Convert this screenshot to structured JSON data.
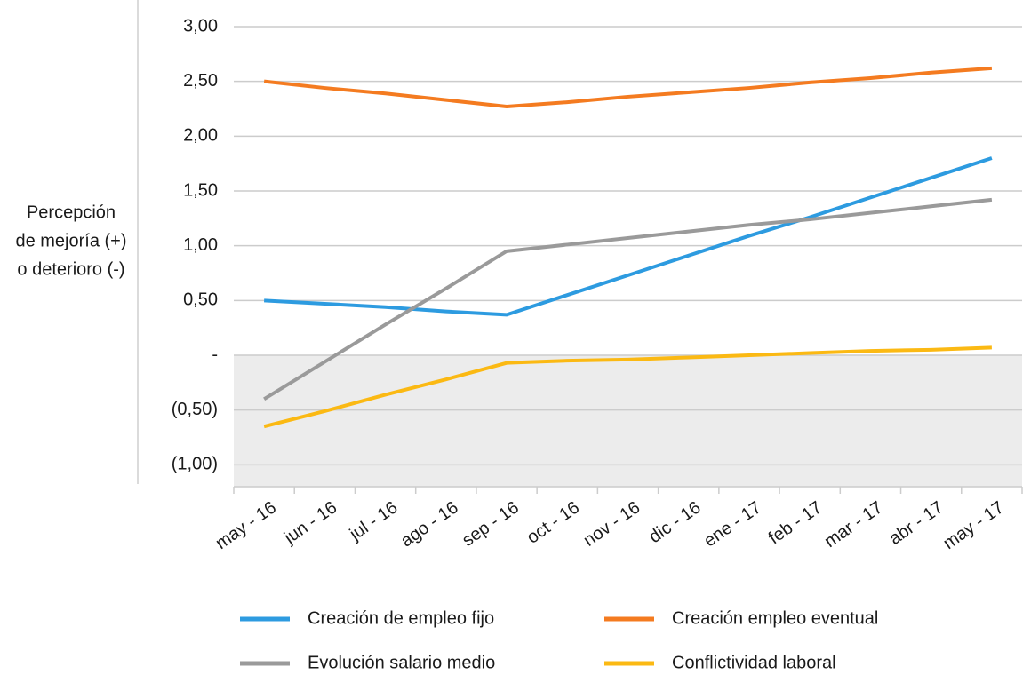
{
  "chart_data": {
    "type": "line",
    "y_label": [
      "Percepción",
      "de mejoría (+)",
      "o deterioro (-)"
    ],
    "categories": [
      "may - 16",
      "jun - 16",
      "jul - 16",
      "ago - 16",
      "sep - 16",
      "oct - 16",
      "nov - 16",
      "dic - 16",
      "ene - 17",
      "feb - 17",
      "mar - 17",
      "abr - 17",
      "may - 17"
    ],
    "series": [
      {
        "name": "Creación de empleo fijo",
        "color": "#2d9be0",
        "values": [
          0.5,
          0.47,
          0.44,
          0.4,
          0.37,
          0.55,
          0.73,
          0.91,
          1.09,
          1.26,
          1.44,
          1.62,
          1.8
        ]
      },
      {
        "name": "Creación empleo eventual",
        "color": "#f47b20",
        "values": [
          2.5,
          2.44,
          2.39,
          2.33,
          2.27,
          2.31,
          2.36,
          2.4,
          2.44,
          2.49,
          2.53,
          2.58,
          2.62
        ]
      },
      {
        "name": "Evolución salario medio",
        "color": "#9a9a9a",
        "values": [
          -0.4,
          -0.06,
          0.28,
          0.61,
          0.95,
          1.01,
          1.07,
          1.13,
          1.19,
          1.24,
          1.3,
          1.36,
          1.42
        ]
      },
      {
        "name": "Conflictividad laboral",
        "color": "#fbb913",
        "values": [
          -0.65,
          -0.51,
          -0.36,
          -0.22,
          -0.07,
          -0.05,
          -0.04,
          -0.02,
          0.0,
          0.02,
          0.04,
          0.05,
          0.07
        ]
      }
    ],
    "ylim": [
      -1.2,
      3.0
    ],
    "yticks": [
      {
        "value": 3.0,
        "label": "3,00"
      },
      {
        "value": 2.5,
        "label": "2,50"
      },
      {
        "value": 2.0,
        "label": "2,00"
      },
      {
        "value": 1.5,
        "label": "1,50"
      },
      {
        "value": 1.0,
        "label": "1,00"
      },
      {
        "value": 0.5,
        "label": "0,50"
      },
      {
        "value": 0,
        "label": "-"
      },
      {
        "value": -0.5,
        "label": "(0,50)"
      },
      {
        "value": -1.0,
        "label": "(1,00)"
      }
    ],
    "grid": true,
    "negative_shade": "#ececec",
    "legend": "bottom"
  }
}
